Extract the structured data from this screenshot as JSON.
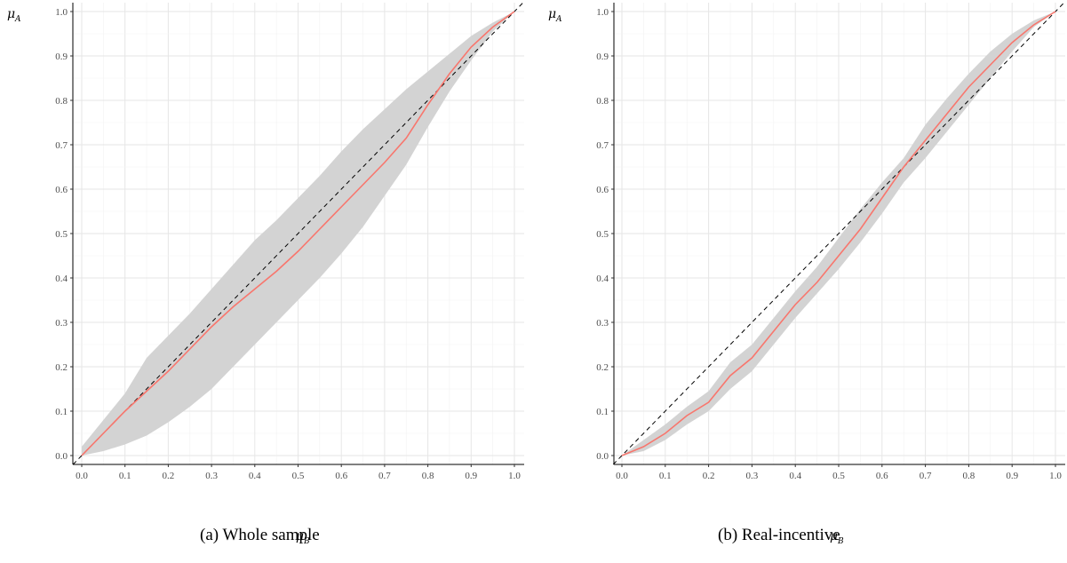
{
  "chart_data": [
    {
      "type": "line",
      "panel": "a",
      "caption": "(a) Whole sample",
      "xlabel": "μ",
      "xlabel_sub": "B",
      "ylabel": "μ",
      "ylabel_sub": "A",
      "xlim": [
        0,
        1
      ],
      "ylim": [
        0,
        1
      ],
      "xticks": [
        "0.0",
        "0.1",
        "0.2",
        "0.3",
        "0.4",
        "0.5",
        "0.6",
        "0.7",
        "0.8",
        "0.9",
        "1.0"
      ],
      "yticks": [
        "0.0",
        "0.1",
        "0.2",
        "0.3",
        "0.4",
        "0.5",
        "0.6",
        "0.7",
        "0.8",
        "0.9",
        "1.0"
      ],
      "grid": true,
      "line_color": "#f8766d",
      "band_color": "#d3d3d3",
      "reference_line": {
        "style": "dashed",
        "x": [
          -0.02,
          1.02
        ],
        "y": [
          -0.02,
          1.02
        ]
      },
      "series": [
        {
          "x": [
            0.0,
            0.05,
            0.1,
            0.15,
            0.2,
            0.25,
            0.3,
            0.35,
            0.4,
            0.45,
            0.5,
            0.55,
            0.6,
            0.65,
            0.7,
            0.75,
            0.8,
            0.85,
            0.9,
            0.95,
            1.0
          ],
          "y": [
            0.0,
            0.05,
            0.1,
            0.145,
            0.19,
            0.24,
            0.29,
            0.335,
            0.375,
            0.415,
            0.46,
            0.51,
            0.56,
            0.61,
            0.66,
            0.715,
            0.79,
            0.86,
            0.92,
            0.965,
            1.0
          ]
        }
      ],
      "band": {
        "x": [
          0.0,
          0.05,
          0.1,
          0.15,
          0.2,
          0.25,
          0.3,
          0.35,
          0.4,
          0.45,
          0.5,
          0.55,
          0.6,
          0.65,
          0.7,
          0.75,
          0.8,
          0.85,
          0.9,
          0.95,
          1.0
        ],
        "lower": [
          0.0,
          0.01,
          0.025,
          0.045,
          0.075,
          0.11,
          0.15,
          0.2,
          0.25,
          0.3,
          0.35,
          0.4,
          0.455,
          0.515,
          0.585,
          0.655,
          0.74,
          0.82,
          0.89,
          0.955,
          1.0
        ],
        "upper": [
          0.02,
          0.08,
          0.14,
          0.22,
          0.27,
          0.32,
          0.375,
          0.43,
          0.485,
          0.53,
          0.58,
          0.63,
          0.685,
          0.735,
          0.78,
          0.825,
          0.865,
          0.905,
          0.945,
          0.975,
          1.0
        ]
      }
    },
    {
      "type": "line",
      "panel": "b",
      "caption": "(b) Real-incentive",
      "xlabel": "μ",
      "xlabel_sub": "B",
      "ylabel": "μ",
      "ylabel_sub": "A",
      "xlim": [
        0,
        1
      ],
      "ylim": [
        0,
        1
      ],
      "xticks": [
        "0.0",
        "0.1",
        "0.2",
        "0.3",
        "0.4",
        "0.5",
        "0.6",
        "0.7",
        "0.8",
        "0.9",
        "1.0"
      ],
      "yticks": [
        "0.0",
        "0.1",
        "0.2",
        "0.3",
        "0.4",
        "0.5",
        "0.6",
        "0.7",
        "0.8",
        "0.9",
        "1.0"
      ],
      "grid": true,
      "line_color": "#f8766d",
      "band_color": "#d3d3d3",
      "reference_line": {
        "style": "dashed",
        "x": [
          -0.02,
          1.02
        ],
        "y": [
          -0.02,
          1.02
        ]
      },
      "series": [
        {
          "x": [
            0.0,
            0.05,
            0.1,
            0.15,
            0.2,
            0.25,
            0.3,
            0.35,
            0.4,
            0.45,
            0.5,
            0.55,
            0.6,
            0.65,
            0.7,
            0.75,
            0.8,
            0.85,
            0.9,
            0.95,
            1.0
          ],
          "y": [
            0.0,
            0.02,
            0.05,
            0.09,
            0.12,
            0.18,
            0.22,
            0.28,
            0.34,
            0.39,
            0.45,
            0.51,
            0.58,
            0.65,
            0.71,
            0.77,
            0.83,
            0.88,
            0.93,
            0.97,
            1.0
          ]
        }
      ],
      "band": {
        "x": [
          0.0,
          0.05,
          0.1,
          0.15,
          0.2,
          0.25,
          0.3,
          0.35,
          0.4,
          0.45,
          0.5,
          0.55,
          0.6,
          0.65,
          0.7,
          0.75,
          0.8,
          0.85,
          0.9,
          0.95,
          1.0
        ],
        "lower": [
          0.0,
          0.01,
          0.035,
          0.07,
          0.1,
          0.15,
          0.19,
          0.25,
          0.31,
          0.365,
          0.42,
          0.48,
          0.545,
          0.615,
          0.67,
          0.73,
          0.79,
          0.85,
          0.91,
          0.965,
          1.0
        ],
        "upper": [
          0.0,
          0.035,
          0.07,
          0.11,
          0.145,
          0.21,
          0.25,
          0.31,
          0.37,
          0.425,
          0.49,
          0.555,
          0.615,
          0.67,
          0.745,
          0.805,
          0.86,
          0.91,
          0.95,
          0.98,
          1.0
        ]
      }
    }
  ]
}
